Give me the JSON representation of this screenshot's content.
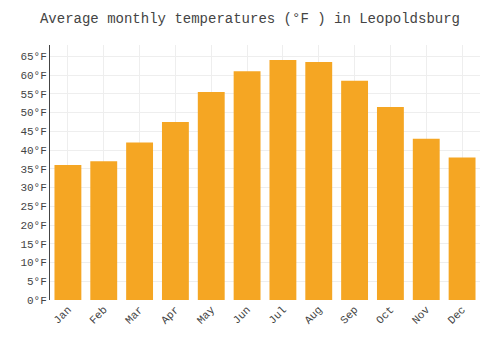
{
  "chart_data": {
    "type": "bar",
    "title": "Average monthly temperatures (°F ) in Leopoldsburg",
    "categories": [
      "Jan",
      "Feb",
      "Mar",
      "Apr",
      "May",
      "Jun",
      "Jul",
      "Aug",
      "Sep",
      "Oct",
      "Nov",
      "Dec"
    ],
    "values": [
      36,
      37,
      42,
      47.5,
      55.5,
      61,
      64,
      63.5,
      58.5,
      51.5,
      43,
      38
    ],
    "color": "#F5A623",
    "ylim": [
      0,
      68
    ],
    "yticks": [
      {
        "value": 0,
        "label": "0°F"
      },
      {
        "value": 5,
        "label": "5°F"
      },
      {
        "value": 10,
        "label": "10°F"
      },
      {
        "value": 15,
        "label": "15°F"
      },
      {
        "value": 20,
        "label": "20°F"
      },
      {
        "value": 25,
        "label": "25°F"
      },
      {
        "value": 30,
        "label": "30°F"
      },
      {
        "value": 35,
        "label": "35°F"
      },
      {
        "value": 40,
        "label": "40°F"
      },
      {
        "value": 45,
        "label": "45°F"
      },
      {
        "value": 50,
        "label": "50°F"
      },
      {
        "value": 55,
        "label": "55°F"
      },
      {
        "value": 60,
        "label": "60°F"
      },
      {
        "value": 65,
        "label": "65°F"
      }
    ],
    "grid": true
  }
}
